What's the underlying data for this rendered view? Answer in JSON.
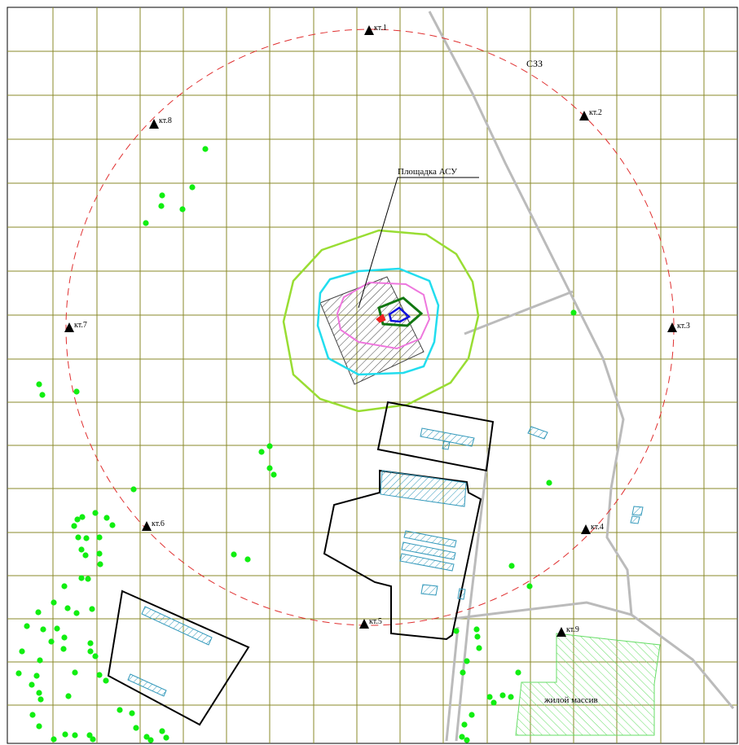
{
  "map": {
    "labels": {
      "zone": "СЗЗ",
      "site": "Площадка АСУ",
      "residential": "жилой массив"
    },
    "control_points": [
      {
        "label": "кт.1"
      },
      {
        "label": "кт.2"
      },
      {
        "label": "кт.3"
      },
      {
        "label": "кт.4"
      },
      {
        "label": "кт.5"
      },
      {
        "label": "кт.6"
      },
      {
        "label": "кт.7"
      },
      {
        "label": "кт.8"
      },
      {
        "label": "кт.9"
      }
    ],
    "colors": {
      "grid": "#8a8a2a",
      "zone_boundary": "#e03030",
      "isoline_outer": "#99dd33",
      "isoline_cyan": "#22ddee",
      "isoline_pink": "#ee77dd",
      "isoline_green": "#117711",
      "isoline_blue": "#1111dd",
      "source": "#ee2222",
      "trees": "#11ee11",
      "building_hatch": "#3399bb",
      "residential_hatch": "#66dd66",
      "roads": "#bbbbbb",
      "outline": "#000000"
    }
  }
}
